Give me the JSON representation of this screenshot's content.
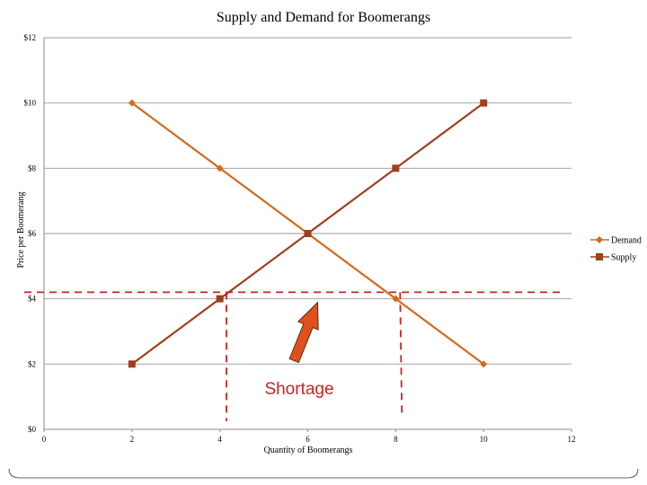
{
  "chart_data": {
    "type": "line",
    "title": "Supply and Demand for Boomerangs",
    "xlabel": "Quantity of Boomerangs",
    "ylabel": "Price per Boomerang",
    "xlim": [
      0,
      12
    ],
    "ylim": [
      0,
      12
    ],
    "x_ticks": [
      "0",
      "2",
      "4",
      "6",
      "8",
      "10",
      "12"
    ],
    "y_ticks": [
      "$0",
      "$2",
      "$4",
      "$6",
      "$8",
      "$10",
      "$12"
    ],
    "grid": "horizontal",
    "legend_position": "right",
    "series": [
      {
        "name": "Demand",
        "color": "#d2691e",
        "marker": "diamond",
        "points": [
          [
            2,
            10
          ],
          [
            4,
            8
          ],
          [
            6,
            6
          ],
          [
            8,
            4
          ],
          [
            10,
            2
          ]
        ]
      },
      {
        "name": "Supply",
        "color": "#a0401c",
        "marker": "square",
        "points": [
          [
            2,
            2
          ],
          [
            4,
            4
          ],
          [
            6,
            6
          ],
          [
            8,
            8
          ],
          [
            10,
            10
          ]
        ]
      }
    ],
    "annotations": {
      "shortage_label": "Shortage",
      "shortage_label_color": "#cc2222",
      "price_line_y": 4.2,
      "left_drop_x": 4.15,
      "right_drop_x": 8.1,
      "line_color": "#cc2222",
      "arrow_color": "#e0501c"
    }
  }
}
